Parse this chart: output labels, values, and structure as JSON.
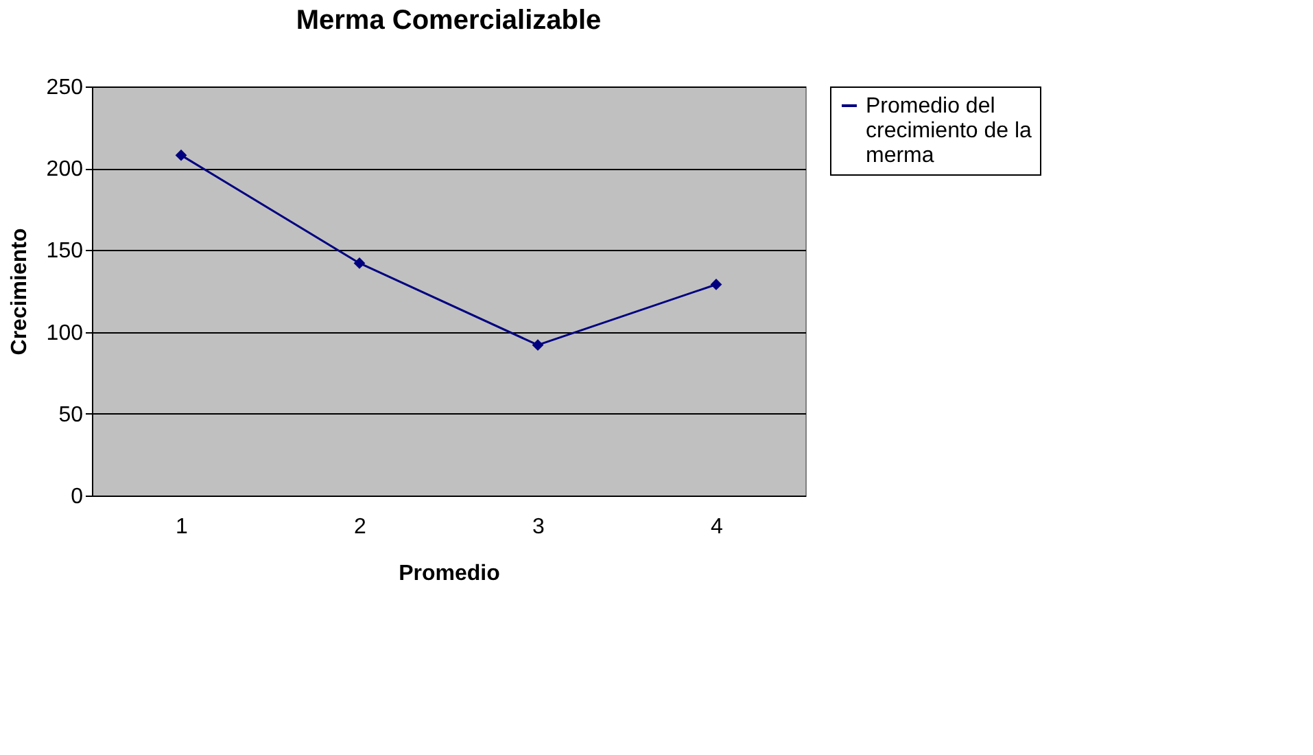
{
  "chart_data": {
    "type": "line",
    "title": "Merma Comercializable",
    "xlabel": "Promedio",
    "ylabel": "Crecimiento",
    "categories": [
      "1",
      "2",
      "3",
      "4"
    ],
    "series": [
      {
        "name": "Promedio del crecimiento de la merma",
        "color": "#000080",
        "values": [
          208,
          142,
          92,
          129
        ]
      }
    ],
    "ylim": [
      0,
      250
    ],
    "yticks": [
      0,
      50,
      100,
      150,
      200,
      250
    ],
    "grid": "y",
    "legend": "right",
    "marker": "diamond",
    "line_style": "solid"
  }
}
